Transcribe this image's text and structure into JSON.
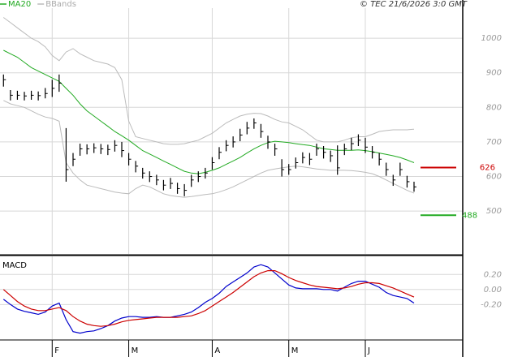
{
  "header": {
    "copyright": "© TEC 21/6/2026 3:0 GMT"
  },
  "chart_data": [
    {
      "type": "ohlc",
      "close": [
        880,
        835,
        835,
        833,
        835,
        834,
        840,
        855,
        870,
        620,
        650,
        680,
        680,
        683,
        680,
        678,
        690,
        675,
        650,
        630,
        610,
        600,
        590,
        575,
        580,
        565,
        560,
        590,
        600,
        610,
        640,
        670,
        690,
        700,
        720,
        740,
        755,
        730,
        700,
        680,
        620,
        620,
        640,
        655,
        650,
        680,
        670,
        660,
        625,
        680,
        695,
        705,
        685,
        670,
        650,
        620,
        590,
        620,
        585,
        570
      ],
      "high": [
        895,
        850,
        848,
        845,
        848,
        846,
        856,
        880,
        895,
        740,
        668,
        695,
        693,
        696,
        694,
        692,
        705,
        700,
        668,
        645,
        625,
        615,
        605,
        590,
        596,
        582,
        578,
        605,
        615,
        625,
        656,
        685,
        705,
        716,
        738,
        758,
        768,
        752,
        718,
        695,
        650,
        636,
        655,
        670,
        668,
        695,
        688,
        675,
        690,
        695,
        712,
        722,
        712,
        688,
        668,
        640,
        605,
        640,
        602,
        585
      ],
      "low": [
        860,
        820,
        822,
        820,
        822,
        820,
        826,
        830,
        845,
        585,
        630,
        660,
        664,
        668,
        665,
        662,
        672,
        656,
        632,
        612,
        594,
        584,
        575,
        560,
        564,
        550,
        543,
        570,
        584,
        594,
        620,
        650,
        673,
        684,
        702,
        722,
        738,
        712,
        680,
        660,
        600,
        605,
        623,
        638,
        633,
        660,
        652,
        642,
        605,
        662,
        676,
        688,
        668,
        652,
        632,
        602,
        573,
        602,
        568,
        556
      ],
      "bar_color": "#000000",
      "series": [
        {
          "name": "MA20",
          "color": "#22aa22",
          "values": [
            965,
            955,
            945,
            930,
            915,
            905,
            895,
            885,
            875,
            855,
            835,
            810,
            790,
            775,
            760,
            745,
            730,
            718,
            705,
            690,
            675,
            665,
            655,
            645,
            635,
            625,
            615,
            610,
            608,
            612,
            618,
            625,
            635,
            645,
            655,
            668,
            680,
            690,
            698,
            702,
            700,
            698,
            695,
            692,
            690,
            685,
            680,
            678,
            676,
            676,
            676,
            677,
            675,
            672,
            668,
            664,
            660,
            655,
            648,
            640
          ]
        },
        {
          "name": "BBands",
          "color": "#bbbbbb",
          "upper": [
            1060,
            1045,
            1030,
            1015,
            1000,
            990,
            975,
            950,
            935,
            960,
            970,
            955,
            945,
            935,
            930,
            925,
            915,
            880,
            760,
            715,
            710,
            705,
            700,
            695,
            693,
            693,
            695,
            700,
            705,
            715,
            725,
            740,
            755,
            765,
            775,
            780,
            783,
            782,
            775,
            765,
            758,
            755,
            745,
            735,
            720,
            705,
            700,
            700,
            700,
            705,
            712,
            715,
            715,
            722,
            730,
            733,
            735,
            735,
            735,
            737
          ],
          "lower": [
            820,
            810,
            805,
            800,
            790,
            780,
            772,
            768,
            760,
            640,
            610,
            590,
            575,
            570,
            565,
            560,
            555,
            552,
            550,
            565,
            575,
            570,
            560,
            550,
            545,
            542,
            540,
            542,
            545,
            548,
            550,
            555,
            562,
            570,
            580,
            590,
            600,
            610,
            618,
            622,
            625,
            628,
            630,
            628,
            625,
            622,
            620,
            618,
            618,
            618,
            617,
            615,
            612,
            608,
            600,
            590,
            580,
            570,
            560,
            552
          ]
        }
      ],
      "levels": [
        {
          "value": 626,
          "color": "#cc0000"
        },
        {
          "value": 488,
          "color": "#22aa22"
        }
      ],
      "ylim": [
        376,
        1087
      ],
      "yticks": [
        500,
        600,
        700,
        800,
        900,
        1000
      ],
      "xlim": [
        -0.5,
        66
      ],
      "grid": true
    },
    {
      "type": "line",
      "title": "MACD",
      "series": [
        {
          "color": "#0000cc",
          "values": [
            -0.13,
            -0.2,
            -0.26,
            -0.29,
            -0.31,
            -0.33,
            -0.3,
            -0.22,
            -0.18,
            -0.4,
            -0.56,
            -0.58,
            -0.56,
            -0.55,
            -0.52,
            -0.48,
            -0.42,
            -0.38,
            -0.36,
            -0.36,
            -0.37,
            -0.37,
            -0.36,
            -0.37,
            -0.37,
            -0.35,
            -0.33,
            -0.3,
            -0.24,
            -0.17,
            -0.12,
            -0.05,
            0.04,
            0.1,
            0.16,
            0.22,
            0.3,
            0.33,
            0.3,
            0.22,
            0.14,
            0.06,
            0.02,
            0.01,
            0.01,
            0.01,
            0.0,
            0.0,
            -0.02,
            0.03,
            0.08,
            0.11,
            0.11,
            0.07,
            0.03,
            -0.04,
            -0.08,
            -0.1,
            -0.12,
            -0.18
          ]
        },
        {
          "color": "#cc0000",
          "values": [
            0.0,
            -0.08,
            -0.16,
            -0.22,
            -0.26,
            -0.28,
            -0.28,
            -0.26,
            -0.24,
            -0.28,
            -0.36,
            -0.42,
            -0.46,
            -0.48,
            -0.49,
            -0.48,
            -0.46,
            -0.43,
            -0.41,
            -0.4,
            -0.39,
            -0.38,
            -0.37,
            -0.37,
            -0.37,
            -0.37,
            -0.36,
            -0.35,
            -0.32,
            -0.28,
            -0.22,
            -0.16,
            -0.1,
            -0.04,
            0.03,
            0.1,
            0.17,
            0.22,
            0.25,
            0.25,
            0.21,
            0.16,
            0.12,
            0.09,
            0.06,
            0.04,
            0.03,
            0.02,
            0.01,
            0.02,
            0.04,
            0.07,
            0.09,
            0.09,
            0.08,
            0.05,
            0.02,
            -0.02,
            -0.06,
            -0.1
          ]
        }
      ],
      "ylim": [
        -0.66,
        0.44
      ],
      "yticks": [
        {
          "value": 0.2,
          "label": "0.20"
        },
        {
          "value": 0,
          "label": "0.00"
        },
        {
          "value": -0.2,
          "label": "-0.20"
        }
      ],
      "xlim": [
        -0.5,
        66
      ],
      "xticks": [
        {
          "value": 7,
          "label": "F"
        },
        {
          "value": 18,
          "label": "M"
        },
        {
          "value": 30,
          "label": "A"
        },
        {
          "value": 41,
          "label": "M"
        },
        {
          "value": 52,
          "label": "J"
        }
      ],
      "grid": true
    }
  ]
}
